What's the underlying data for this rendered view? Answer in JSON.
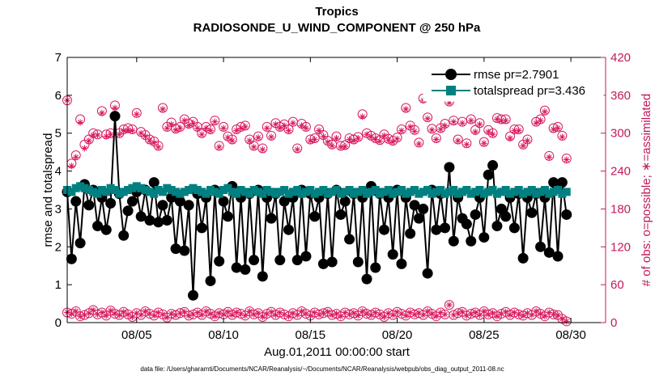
{
  "chart_data": {
    "type": "line",
    "title": "Tropics",
    "subtitle": "RADIOSONDE_U_WIND_COMPONENT @ 250 hPa",
    "xlabel": "Aug.01,2011 00:00:00 start",
    "ylabel": "rmse and totalspread",
    "y2label": "# of obs: o=possible; ∗=assimilated",
    "footnote": "data file: /Users/gharamti/Documents/NCAR/Reanalysis/~/Documents/NCAR/Reanalysis/webpub/obs_diag_output_2011-08.nc",
    "xlim": [
      1,
      32
    ],
    "ylim": [
      0,
      7
    ],
    "y2lim": [
      0,
      420
    ],
    "yticks": [
      "0",
      "1",
      "2",
      "3",
      "4",
      "5",
      "6",
      "7"
    ],
    "y2ticks": [
      "0",
      "60",
      "120",
      "180",
      "240",
      "300",
      "360",
      "420"
    ],
    "xticks": [
      {
        "day": 5,
        "label": "08/05"
      },
      {
        "day": 10,
        "label": "08/10"
      },
      {
        "day": 15,
        "label": "08/15"
      },
      {
        "day": 20,
        "label": "08/20"
      },
      {
        "day": 25,
        "label": "08/25"
      },
      {
        "day": 30,
        "label": "08/30"
      }
    ],
    "grid": false,
    "legend_position": "top-right",
    "colors": {
      "rmse": "#000000",
      "spread": "#008080",
      "obs": "#d81b60"
    },
    "series": [
      {
        "name": "rmse pr=2.7901",
        "start_day": 1.0,
        "step_days": 0.25,
        "values": [
          3.45,
          1.68,
          3.2,
          2.1,
          3.65,
          3.1,
          3.5,
          2.55,
          3.3,
          2.45,
          3.15,
          5.45,
          3.4,
          2.3,
          2.95,
          3.2,
          3.45,
          2.8,
          3.5,
          2.7,
          3.7,
          2.65,
          3.1,
          2.7,
          3.3,
          1.95,
          3.2,
          1.9,
          3.1,
          0.72,
          3.4,
          2.5,
          3.3,
          1.1,
          3.5,
          1.62,
          3.2,
          2.8,
          3.6,
          1.45,
          3.3,
          1.4,
          3.4,
          1.65,
          3.5,
          1.22,
          3.3,
          2.75,
          3.4,
          1.65,
          3.2,
          2.45,
          3.3,
          1.65,
          3.5,
          1.75,
          3.4,
          2.8,
          3.3,
          1.55,
          3.4,
          1.6,
          3.5,
          2.85,
          3.2,
          2.2,
          3.4,
          1.6,
          3.3,
          1.15,
          3.6,
          1.45,
          3.4,
          2.45,
          3.3,
          1.8,
          3.5,
          1.55,
          3.3,
          2.35,
          3.1,
          2.75,
          3.0,
          1.3,
          3.5,
          2.45,
          3.4,
          2.5,
          4.1,
          2.15,
          3.3,
          2.75,
          2.6,
          2.15,
          2.85,
          3.3,
          2.25,
          3.9,
          4.15,
          2.55,
          3.0,
          2.8,
          3.3,
          2.5,
          3.4,
          1.7,
          3.3,
          2.9,
          3.4,
          2.0,
          3.3,
          1.85,
          3.7,
          1.75,
          3.7,
          2.85
        ]
      },
      {
        "name": "totalspread pr=3.436",
        "start_day": 1.0,
        "step_days": 0.25,
        "values": [
          3.5,
          3.45,
          3.55,
          3.6,
          3.55,
          3.5,
          3.45,
          3.4,
          3.5,
          3.45,
          3.55,
          3.5,
          3.4,
          3.45,
          3.5,
          3.55,
          3.6,
          3.55,
          3.5,
          3.45,
          3.4,
          3.5,
          3.45,
          3.55,
          3.5,
          3.45,
          3.4,
          3.45,
          3.5,
          3.55,
          3.5,
          3.45,
          3.4,
          3.5,
          3.45,
          3.4,
          3.5,
          3.55,
          3.45,
          3.4,
          3.5,
          3.45,
          3.4,
          3.5,
          3.45,
          3.4,
          3.5,
          3.45,
          3.4,
          3.45,
          3.5,
          3.4,
          3.45,
          3.5,
          3.4,
          3.45,
          3.5,
          3.4,
          3.45,
          3.5,
          3.4,
          3.45,
          3.5,
          3.4,
          3.45,
          3.5,
          3.4,
          3.45,
          3.5,
          3.4,
          3.45,
          3.5,
          3.4,
          3.45,
          3.5,
          3.4,
          3.45,
          3.5,
          3.4,
          3.45,
          3.5,
          3.4,
          3.45,
          3.5,
          3.4,
          3.45,
          3.5,
          3.4,
          3.45,
          3.5,
          3.4,
          3.45,
          3.5,
          3.4,
          3.45,
          3.5,
          3.4,
          3.45,
          3.5,
          3.4,
          3.45,
          3.5,
          3.4,
          3.45,
          3.5,
          3.4,
          3.45,
          3.5,
          3.4,
          3.45,
          3.5,
          3.4,
          3.45,
          3.5,
          3.4,
          3.45
        ]
      }
    ],
    "obs_possible": {
      "name": "# of obs possible",
      "start_day": 1.0,
      "step_days": 0.25,
      "values": [
        352,
        252,
        265,
        322,
        282,
        290,
        300,
        298,
        335,
        298,
        300,
        344,
        300,
        306,
        308,
        306,
        332,
        302,
        297,
        290,
        287,
        280,
        340,
        310,
        317,
        307,
        310,
        322,
        315,
        318,
        310,
        300,
        310,
        306,
        320,
        280,
        310,
        295,
        290,
        306,
        310,
        312,
        290,
        280,
        295,
        276,
        310,
        296,
        316,
        310,
        314,
        306,
        318,
        276,
        315,
        310,
        290,
        292,
        306,
        297,
        288,
        282,
        295,
        280,
        281,
        292,
        290,
        294,
        330,
        300,
        296,
        292,
        289,
        298,
        291,
        288,
        293,
        306,
        340,
        312,
        305,
        285,
        355,
        325,
        307,
        292,
        308,
        315,
        350,
        320,
        290,
        318,
        284,
        322,
        305,
        316,
        286,
        305,
        300,
        324,
        322,
        322,
        295,
        306,
        306,
        282,
        290,
        358,
        318,
        322,
        336,
        264,
        308,
        310,
        296,
        260
      ]
    },
    "obs_assimilated": {
      "name": "# of obs assimilated",
      "start_day": 1.0,
      "step_days": 0.25,
      "values": [
        352,
        248,
        262,
        317,
        276,
        288,
        297,
        297,
        332,
        295,
        298,
        340,
        298,
        304,
        305,
        304,
        330,
        300,
        295,
        288,
        285,
        278,
        338,
        308,
        314,
        305,
        308,
        320,
        312,
        316,
        308,
        298,
        308,
        304,
        318,
        278,
        308,
        293,
        288,
        304,
        308,
        310,
        288,
        278,
        293,
        274,
        308,
        294,
        314,
        308,
        312,
        304,
        316,
        274,
        312,
        308,
        288,
        290,
        304,
        295,
        286,
        280,
        292,
        278,
        279,
        290,
        288,
        292,
        326,
        298,
        294,
        290,
        287,
        296,
        289,
        286,
        291,
        304,
        338,
        310,
        303,
        283,
        352,
        323,
        305,
        290,
        306,
        312,
        348,
        318,
        288,
        316,
        282,
        320,
        302,
        314,
        284,
        302,
        298,
        322,
        320,
        320,
        292,
        304,
        304,
        280,
        288,
        355,
        316,
        320,
        334,
        262,
        306,
        308,
        294,
        258
      ]
    },
    "obs_low_possible": {
      "name": "# of obs possible (low)",
      "start_day": 1.0,
      "step_days": 0.25,
      "values": [
        16,
        14,
        18,
        10,
        12,
        15,
        20,
        13,
        16,
        11,
        19,
        14,
        12,
        17,
        13,
        9,
        15,
        12,
        18,
        14,
        11,
        16,
        13,
        8,
        14,
        12,
        15,
        17,
        11,
        13,
        16,
        12,
        18,
        14,
        10,
        15,
        13,
        17,
        12,
        16,
        14,
        11,
        18,
        13,
        15,
        9,
        14,
        17,
        12,
        16,
        13,
        10,
        15,
        12,
        18,
        14,
        11,
        16,
        13,
        15,
        17,
        12,
        14,
        10,
        16,
        13,
        15,
        11,
        18,
        14,
        12,
        16,
        13,
        9,
        15,
        12,
        17,
        14,
        11,
        16,
        13,
        15,
        12,
        18,
        14,
        10,
        16,
        13,
        28,
        12,
        15,
        17,
        11,
        14,
        16,
        12,
        18,
        13,
        15,
        10,
        14,
        17,
        12,
        16,
        13,
        11,
        15,
        12,
        18,
        14,
        10,
        16,
        13,
        12,
        6,
        2
      ]
    }
  }
}
